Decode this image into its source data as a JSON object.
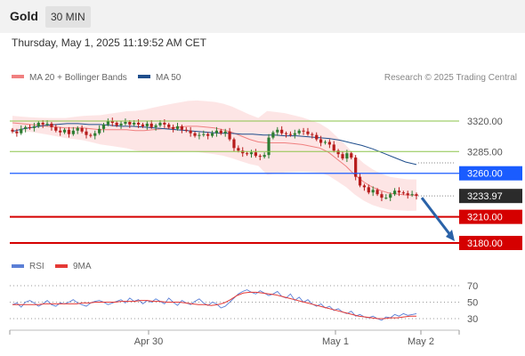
{
  "header": {
    "asset": "Gold",
    "timeframe": "30 MIN",
    "datetime": "Thursday, May 1, 2025 11:19:52 AM CET"
  },
  "legend": {
    "ma20_label": "MA 20 + Bollinger Bands",
    "ma50_label": "MA 50",
    "credit": "Research © 2025 Trading Central",
    "rsi_label": "RSI",
    "ma9_label": "9MA"
  },
  "colors": {
    "candle_up": "#2e7d32",
    "candle_down": "#b71c1c",
    "bollinger_fill": "#fde0e0",
    "ma20": "#f08080",
    "ma50": "#1f4e8c",
    "support_line": "#d50000",
    "pivot_line": "#1a5cff",
    "resistance_line": "#8bc34a",
    "rsi": "#5b7fd6",
    "rsi_ma": "#e53935",
    "arrow": "#2a62a8"
  },
  "chart_data": {
    "type": "candlestick",
    "ylim": [
      3172,
      3334
    ],
    "x_ticks": [
      "Apr 30",
      "May 1",
      "May 2"
    ],
    "levels": [
      {
        "value": 3320.0,
        "label": "3320.00",
        "kind": "resistance"
      },
      {
        "value": 3285.0,
        "label": "3285.00",
        "kind": "resistance"
      },
      {
        "value": 3260.0,
        "label": "3260.00",
        "kind": "pivot"
      },
      {
        "value": 3233.97,
        "label": "3233.97",
        "kind": "last"
      },
      {
        "value": 3210.0,
        "label": "3210.00",
        "kind": "support"
      },
      {
        "value": 3180.0,
        "label": "3180.00",
        "kind": "support"
      }
    ],
    "closes": [
      3308,
      3306,
      3311,
      3313,
      3312,
      3314,
      3318,
      3316,
      3317,
      3313,
      3309,
      3307,
      3310,
      3305,
      3309,
      3312,
      3308,
      3304,
      3303,
      3306,
      3311,
      3316,
      3320,
      3318,
      3315,
      3317,
      3319,
      3316,
      3318,
      3316,
      3314,
      3317,
      3313,
      3315,
      3318,
      3316,
      3313,
      3311,
      3314,
      3310,
      3309,
      3306,
      3303,
      3304,
      3305,
      3303,
      3306,
      3309,
      3306,
      3308,
      3299,
      3289,
      3286,
      3283,
      3282,
      3284,
      3280,
      3279,
      3281,
      3301,
      3307,
      3310,
      3306,
      3305,
      3304,
      3306,
      3309,
      3308,
      3305,
      3304,
      3299,
      3295,
      3296,
      3293,
      3286,
      3282,
      3277,
      3283,
      3278,
      3256,
      3246,
      3244,
      3238,
      3241,
      3236,
      3232,
      3232,
      3236,
      3240,
      3238,
      3237,
      3235,
      3236,
      3233.97
    ],
    "ma20": [
      3318,
      3317,
      3316,
      3315,
      3314,
      3313,
      3312,
      3312,
      3312,
      3311,
      3310,
      3310,
      3310,
      3310,
      3309,
      3309,
      3310,
      3311,
      3312,
      3313,
      3314,
      3314,
      3313,
      3312,
      3310,
      3307,
      3303,
      3299,
      3296,
      3295,
      3295,
      3295,
      3294,
      3293,
      3291,
      3289,
      3284,
      3276,
      3268,
      3258,
      3250,
      3244,
      3240,
      3237,
      3236,
      3235,
      3235
    ],
    "ma50": [
      3308,
      3311,
      3313,
      3315,
      3316,
      3317,
      3317,
      3316,
      3316,
      3315,
      3314,
      3314,
      3313,
      3312,
      3311,
      3310,
      3309,
      3308,
      3307,
      3306,
      3306,
      3305,
      3305,
      3304,
      3304,
      3303,
      3303,
      3302,
      3301,
      3300,
      3298,
      3295,
      3292,
      3288,
      3283,
      3278,
      3273,
      3270
    ],
    "rsi": [
      47,
      49,
      44,
      50,
      52,
      49,
      45,
      48,
      52,
      47,
      45,
      49,
      48,
      50,
      53,
      49,
      47,
      45,
      49,
      51,
      52,
      50,
      47,
      49,
      51,
      53,
      49,
      55,
      51,
      53,
      48,
      52,
      50,
      54,
      51,
      48,
      55,
      50,
      46,
      52,
      49,
      47,
      51,
      54,
      49,
      46,
      50,
      48,
      43,
      45,
      50,
      55,
      60,
      63,
      65,
      62,
      60,
      64,
      61,
      58,
      60,
      63,
      57,
      55,
      60,
      52,
      56,
      50,
      53,
      48,
      45,
      48,
      43,
      45,
      40,
      42,
      38,
      36,
      39,
      33,
      35,
      32,
      31,
      33,
      30,
      28,
      32,
      31,
      35,
      33,
      36,
      34,
      35,
      36
    ],
    "rsi_ma": [
      47,
      47,
      47,
      47,
      47,
      48,
      48,
      48,
      48,
      48,
      48,
      49,
      49,
      50,
      50,
      50,
      50,
      51,
      51,
      51,
      52,
      52,
      51,
      51,
      50,
      50,
      50,
      49,
      48,
      47,
      47,
      46,
      47,
      49,
      53,
      58,
      61,
      62,
      62,
      61,
      60,
      59,
      57,
      55,
      53,
      51,
      49,
      47,
      45,
      43,
      41,
      39,
      37,
      35,
      33,
      32,
      31,
      30,
      30,
      31,
      31,
      32,
      33,
      33
    ]
  }
}
